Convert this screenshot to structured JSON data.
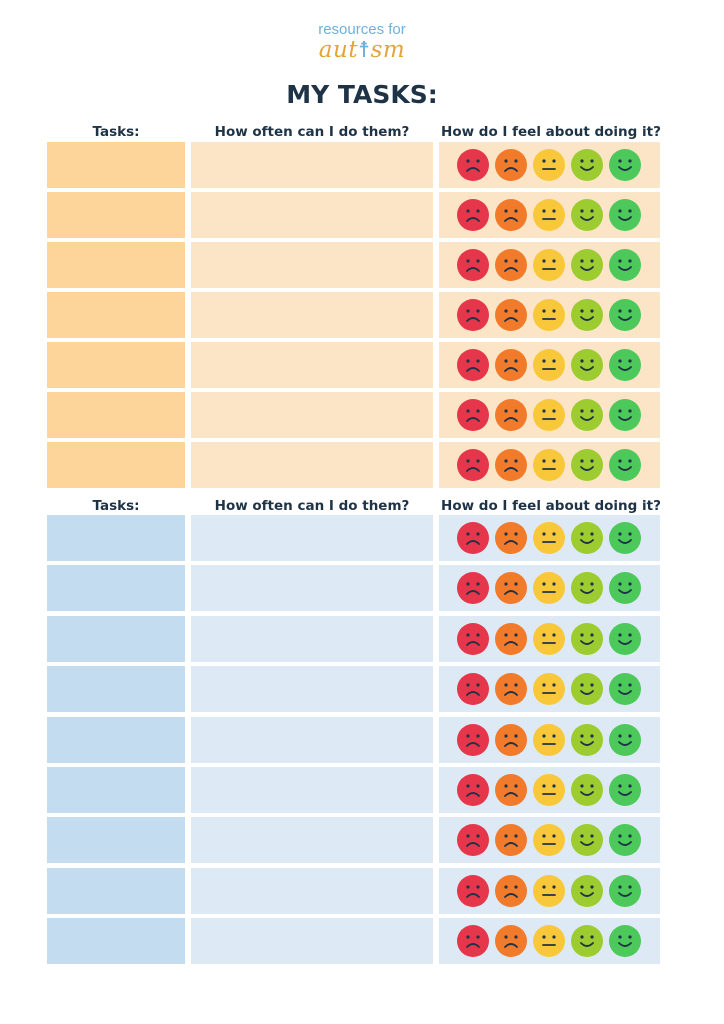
{
  "logo": {
    "line1": "resources for",
    "word_left": "aut",
    "word_right": "sm"
  },
  "title": "MY TASKS:",
  "headers": {
    "tasks": "Tasks:",
    "how_often": "How often can I do them?",
    "feel": "How do I feel about doing it?"
  },
  "faces": [
    {
      "name": "very-sad",
      "color": "#e5364b",
      "mouth": "frown"
    },
    {
      "name": "sad",
      "color": "#f27a2b",
      "mouth": "frown"
    },
    {
      "name": "neutral",
      "color": "#f9c83a",
      "mouth": "flat"
    },
    {
      "name": "happy",
      "color": "#9ccc2f",
      "mouth": "smile"
    },
    {
      "name": "very-happy",
      "color": "#4cc95a",
      "mouth": "smile"
    }
  ],
  "sections": [
    {
      "theme": "orange",
      "rows": 7
    },
    {
      "theme": "blue",
      "rows": 9
    }
  ]
}
